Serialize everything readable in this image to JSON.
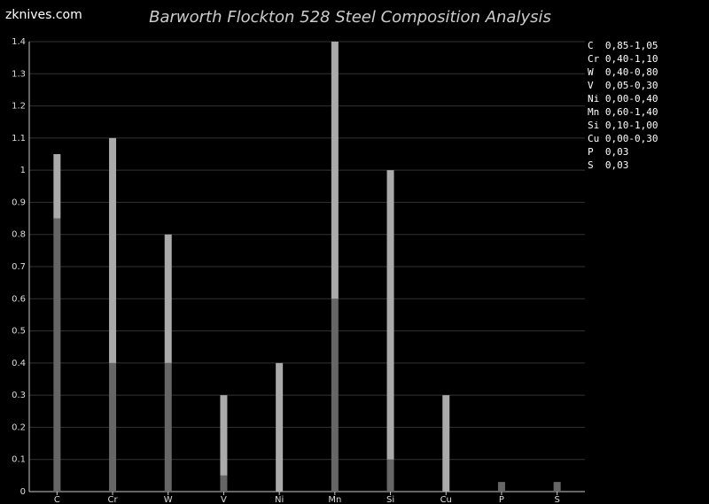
{
  "site": "zknives.com",
  "chart_data": {
    "type": "rangebar",
    "title": "Barworth Flockton 528 Steel Composition Analysis",
    "categories": [
      "C",
      "Cr",
      "W",
      "V",
      "Ni",
      "Mn",
      "Si",
      "Cu",
      "P",
      "S"
    ],
    "min": [
      0.85,
      0.4,
      0.4,
      0.05,
      0.0,
      0.6,
      0.1,
      0.0,
      0.03,
      0.03
    ],
    "max": [
      1.05,
      1.1,
      0.8,
      0.3,
      0.4,
      1.4,
      1.0,
      0.3,
      0.03,
      0.03
    ],
    "min_color": "#666666",
    "max_color": "#aaaaaa",
    "ylim": [
      0,
      1.4
    ],
    "yticks": [
      0,
      0.1,
      0.2,
      0.3,
      0.4,
      0.5,
      0.6,
      0.7,
      0.8,
      0.9,
      1,
      1.1,
      1.2,
      1.3,
      1.4
    ],
    "grid": true,
    "specs": [
      "C  0,85-1,05",
      "Cr 0,40-1,10",
      "W  0,40-0,80",
      "V  0,05-0,30",
      "Ni 0,00-0,40",
      "Mn 0,60-1,40",
      "Si 0,10-1,00",
      "Cu 0,00-0,30",
      "P  0,03",
      "S  0,03"
    ]
  }
}
